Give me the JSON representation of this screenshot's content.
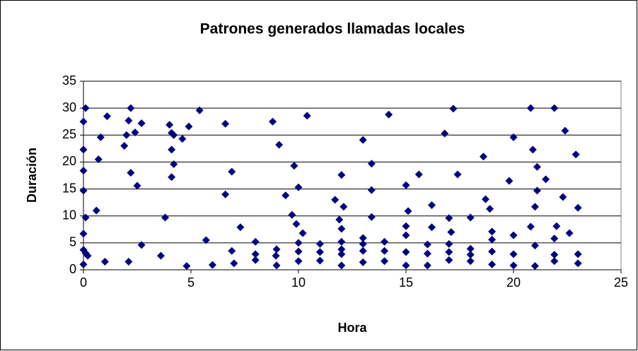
{
  "chart_data": {
    "type": "scatter",
    "title": "Patrones generados llamadas locales",
    "x_label": "Hora",
    "y_label": "Duración",
    "color": "#000080",
    "grid": true,
    "xlim": [
      0,
      25
    ],
    "xticks": [
      0,
      5,
      10,
      15,
      20,
      25
    ],
    "ylim": [
      0,
      35
    ],
    "yticks": [
      0,
      5,
      10,
      15,
      20,
      25,
      30,
      35
    ],
    "x": [
      0,
      0,
      0,
      0,
      0.1,
      0,
      0,
      0.1,
      0.2,
      0,
      0.1,
      0.7,
      0.8,
      0.6,
      1,
      1.1,
      1.9,
      2,
      2.1,
      2.2,
      2.2,
      2.4,
      2.5,
      2.7,
      2.7,
      2.1,
      3.6,
      3.8,
      4,
      4.1,
      4.2,
      4.1,
      4.2,
      4.1,
      4.6,
      4.9,
      4.8,
      5.4,
      5.7,
      6,
      6.6,
      6.6,
      6.9,
      6.9,
      7,
      7.3,
      8,
      8,
      8,
      8.8,
      8.98,
      8.95,
      8.98,
      9.1,
      9.4,
      9.7,
      9.8,
      9.9,
      10,
      10.2,
      10,
      10,
      10,
      10.4,
      11,
      11,
      11,
      11.7,
      11.9,
      12,
      12.1,
      12,
      12,
      12,
      12,
      12,
      13,
      13,
      13,
      13,
      13,
      13.4,
      13.4,
      13.4,
      14,
      14,
      14,
      14.2,
      15,
      15.1,
      15,
      15,
      15,
      15,
      15.6,
      16,
      16,
      16,
      16.2,
      16.2,
      16.8,
      17,
      17,
      17,
      17,
      17.1,
      17.2,
      17.4,
      18,
      18,
      18,
      18,
      18.6,
      18.7,
      18.9,
      19,
      19,
      19,
      19,
      19.8,
      20,
      20,
      20,
      20,
      20.8,
      20.8,
      20.9,
      21,
      21,
      21,
      21.1,
      21.1,
      21.5,
      21.9,
      22,
      21.9,
      21.9,
      21.9,
      22.3,
      22.4,
      22.6,
      22.9,
      23,
      23,
      23
    ],
    "values": [
      27.5,
      22.3,
      18.4,
      14.7,
      9.7,
      6.7,
      3.7,
      3.1,
      2.6,
      1,
      30,
      20.5,
      24.6,
      11,
      1.5,
      28.5,
      23,
      25,
      27.7,
      30,
      18,
      25.5,
      15.6,
      27.2,
      4.6,
      1.5,
      2.6,
      9.7,
      26.9,
      25.4,
      25,
      22.3,
      19.6,
      17.2,
      24.3,
      26.6,
      0.7,
      29.6,
      5.5,
      0.9,
      27.1,
      14,
      18.2,
      3.5,
      1.2,
      7.9,
      5.2,
      2.9,
      1.8,
      27.5,
      3.8,
      2.6,
      0.8,
      23.2,
      13.8,
      10.2,
      19.3,
      8.5,
      15.3,
      6.8,
      5,
      3.4,
      1.6,
      28.6,
      4.8,
      3.3,
      1.7,
      13,
      9.3,
      7.6,
      11.7,
      17.6,
      5.2,
      3.8,
      2.9,
      0.8,
      24.1,
      5.9,
      4.8,
      3.5,
      1.4,
      19.7,
      14.8,
      9.8,
      5.2,
      3.5,
      1.6,
      28.8,
      15.7,
      10.9,
      8.1,
      6.4,
      3.3,
      0.8,
      17.7,
      4.7,
      3,
      0.8,
      12,
      7.9,
      25.3,
      9.6,
      4.8,
      3.3,
      1.8,
      7,
      29.9,
      17.7,
      9.7,
      3.9,
      2.8,
      1.6,
      21,
      13.1,
      11.3,
      7.1,
      5.6,
      3.4,
      1,
      16.5,
      24.6,
      6.4,
      2.9,
      0.8,
      30,
      8,
      22.3,
      11.7,
      4.5,
      0.7,
      19.1,
      14.7,
      16.8,
      30,
      8.1,
      5.8,
      2.8,
      1.6,
      13.5,
      25.8,
      6.8,
      21.4,
      11.5,
      2.9,
      1.2
    ]
  }
}
